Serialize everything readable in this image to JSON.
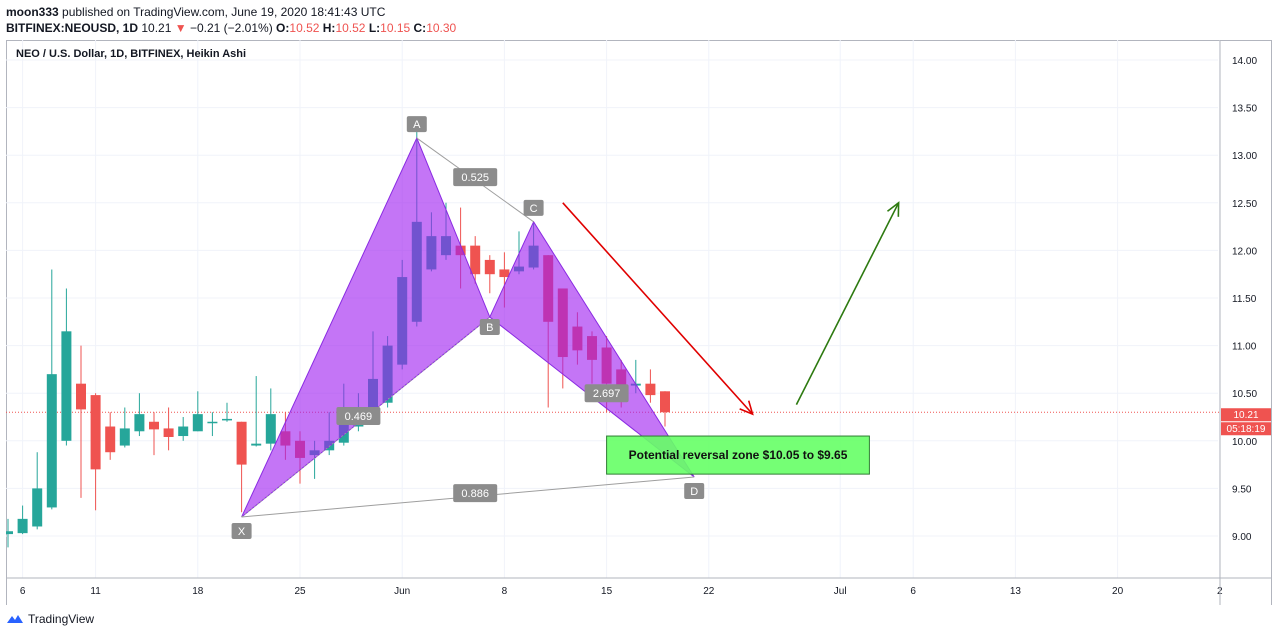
{
  "header": {
    "user": "moon333",
    "published": "published on TradingView.com, June 19, 2020 18:41:43 UTC",
    "symbol": "BITFINEX:NEOUSD, 1D",
    "last": "10.21",
    "change": "−0.21 (−2.01%)",
    "o_label": "O:",
    "o": "10.52",
    "h_label": "H:",
    "h": "10.52",
    "l_label": "L:",
    "l": "10.15",
    "c_label": "C:",
    "c": "10.30"
  },
  "legend_title": "NEO / U.S. Dollar, 1D, BITFINEX, Heikin Ashi",
  "footer": {
    "brand": "TradingView"
  },
  "colors": {
    "up": "#26a69a",
    "down": "#ef5350",
    "pattern": "#a020f0",
    "zone": "#66ff66",
    "red_arrow": "#e00000",
    "green_arrow": "#2d7a10"
  },
  "chart_data": {
    "type": "candlestick",
    "title": "NEO / U.S. Dollar, 1D, BITFINEX, Heikin Ashi",
    "ylim": [
      8.55,
      14.2
    ],
    "y_ticks": [
      "14.00",
      "13.50",
      "13.00",
      "12.50",
      "12.00",
      "11.50",
      "11.00",
      "10.50",
      "10.00",
      "9.50",
      "9.00"
    ],
    "x_ticks": [
      {
        "label": "6",
        "day": 6
      },
      {
        "label": "11",
        "day": 11
      },
      {
        "label": "18",
        "day": 18
      },
      {
        "label": "25",
        "day": 25
      },
      {
        "label": "Jun",
        "day": 32
      },
      {
        "label": "8",
        "day": 39
      },
      {
        "label": "15",
        "day": 46
      },
      {
        "label": "22",
        "day": 53
      },
      {
        "label": "Jul",
        "day": 62
      },
      {
        "label": "6",
        "day": 67
      },
      {
        "label": "13",
        "day": 74
      },
      {
        "label": "20",
        "day": 81
      },
      {
        "label": "2",
        "day": 88
      }
    ],
    "day_reference": "day 1 = May 1, 2020",
    "candles": [
      {
        "d": 5,
        "o": 9.02,
        "c": 9.05,
        "h": 9.18,
        "l": 8.88
      },
      {
        "d": 6,
        "o": 9.03,
        "c": 9.18,
        "h": 9.32,
        "l": 9.02
      },
      {
        "d": 7,
        "o": 9.1,
        "c": 9.5,
        "h": 9.88,
        "l": 9.07
      },
      {
        "d": 8,
        "o": 9.3,
        "c": 10.7,
        "h": 11.8,
        "l": 9.28
      },
      {
        "d": 9,
        "o": 10.0,
        "c": 11.15,
        "h": 11.6,
        "l": 9.95
      },
      {
        "d": 10,
        "o": 10.6,
        "c": 10.33,
        "h": 11.0,
        "l": 9.4
      },
      {
        "d": 11,
        "o": 10.48,
        "c": 9.7,
        "h": 10.5,
        "l": 9.27
      },
      {
        "d": 12,
        "o": 10.15,
        "c": 9.88,
        "h": 10.3,
        "l": 9.8
      },
      {
        "d": 13,
        "o": 9.95,
        "c": 10.13,
        "h": 10.35,
        "l": 9.93
      },
      {
        "d": 14,
        "o": 10.1,
        "c": 10.28,
        "h": 10.5,
        "l": 10.05
      },
      {
        "d": 15,
        "o": 10.2,
        "c": 10.12,
        "h": 10.3,
        "l": 9.85
      },
      {
        "d": 16,
        "o": 10.13,
        "c": 10.04,
        "h": 10.35,
        "l": 9.9
      },
      {
        "d": 17,
        "o": 10.05,
        "c": 10.15,
        "h": 10.25,
        "l": 10.0
      },
      {
        "d": 18,
        "o": 10.1,
        "c": 10.28,
        "h": 10.52,
        "l": 10.1
      },
      {
        "d": 19,
        "o": 10.2,
        "c": 10.2,
        "h": 10.3,
        "l": 10.05
      },
      {
        "d": 20,
        "o": 10.22,
        "c": 10.23,
        "h": 10.4,
        "l": 10.2
      },
      {
        "d": 21,
        "o": 10.2,
        "c": 9.75,
        "h": 10.2,
        "l": 9.25
      },
      {
        "d": 22,
        "o": 9.95,
        "c": 9.97,
        "h": 10.68,
        "l": 9.94
      },
      {
        "d": 23,
        "o": 9.97,
        "c": 10.28,
        "h": 10.55,
        "l": 9.9
      },
      {
        "d": 24,
        "o": 10.1,
        "c": 9.95,
        "h": 10.3,
        "l": 9.8
      },
      {
        "d": 25,
        "o": 10.0,
        "c": 9.82,
        "h": 10.1,
        "l": 9.55
      },
      {
        "d": 26,
        "o": 9.85,
        "c": 9.9,
        "h": 10.0,
        "l": 9.6
      },
      {
        "d": 27,
        "o": 9.9,
        "c": 10.0,
        "h": 10.3,
        "l": 9.85
      },
      {
        "d": 28,
        "o": 9.98,
        "c": 10.2,
        "h": 10.6,
        "l": 9.95
      },
      {
        "d": 29,
        "o": 10.15,
        "c": 10.22,
        "h": 10.5,
        "l": 10.1
      },
      {
        "d": 30,
        "o": 10.2,
        "c": 10.65,
        "h": 11.15,
        "l": 10.18
      },
      {
        "d": 31,
        "o": 10.4,
        "c": 11.0,
        "h": 11.1,
        "l": 10.35
      },
      {
        "d": 32,
        "o": 10.8,
        "c": 11.72,
        "h": 11.9,
        "l": 10.75
      },
      {
        "d": 33,
        "o": 11.25,
        "c": 12.3,
        "h": 13.25,
        "l": 11.2
      },
      {
        "d": 34,
        "o": 11.8,
        "c": 12.15,
        "h": 12.4,
        "l": 11.78
      },
      {
        "d": 35,
        "o": 11.95,
        "c": 12.15,
        "h": 12.5,
        "l": 11.9
      },
      {
        "d": 36,
        "o": 12.05,
        "c": 11.95,
        "h": 12.45,
        "l": 11.6
      },
      {
        "d": 37,
        "o": 12.05,
        "c": 11.75,
        "h": 12.15,
        "l": 11.65
      },
      {
        "d": 38,
        "o": 11.9,
        "c": 11.75,
        "h": 11.95,
        "l": 11.55
      },
      {
        "d": 39,
        "o": 11.8,
        "c": 11.72,
        "h": 11.98,
        "l": 11.4
      },
      {
        "d": 40,
        "o": 11.78,
        "c": 11.83,
        "h": 12.2,
        "l": 11.75
      },
      {
        "d": 41,
        "o": 11.82,
        "c": 12.05,
        "h": 12.3,
        "l": 11.8
      },
      {
        "d": 42,
        "o": 11.95,
        "c": 11.25,
        "h": 11.95,
        "l": 10.35
      },
      {
        "d": 43,
        "o": 11.6,
        "c": 10.88,
        "h": 11.6,
        "l": 10.55
      },
      {
        "d": 44,
        "o": 11.2,
        "c": 10.95,
        "h": 11.35,
        "l": 10.8
      },
      {
        "d": 45,
        "o": 11.1,
        "c": 10.85,
        "h": 11.15,
        "l": 10.6
      },
      {
        "d": 46,
        "o": 10.98,
        "c": 10.6,
        "h": 11.1,
        "l": 10.3
      },
      {
        "d": 47,
        "o": 10.75,
        "c": 10.55,
        "h": 10.85,
        "l": 10.35
      },
      {
        "d": 48,
        "o": 10.58,
        "c": 10.6,
        "h": 10.85,
        "l": 10.5
      },
      {
        "d": 49,
        "o": 10.6,
        "c": 10.48,
        "h": 10.75,
        "l": 10.4
      },
      {
        "d": 50,
        "o": 10.52,
        "c": 10.3,
        "h": 10.52,
        "l": 10.15
      }
    ],
    "current_price": 10.3,
    "price_label": "10.21",
    "countdown": "05:18:19",
    "harmonic_pattern": {
      "points": [
        {
          "label": "X",
          "day": 21,
          "price": 9.2
        },
        {
          "label": "A",
          "day": 33,
          "price": 13.18
        },
        {
          "label": "B",
          "day": 38,
          "price": 11.3
        },
        {
          "label": "C",
          "day": 41,
          "price": 12.3
        },
        {
          "label": "D",
          "day": 52,
          "price": 9.62
        }
      ],
      "ratios": [
        {
          "text": "0.525",
          "day": 37,
          "price": 12.77
        },
        {
          "text": "0.469",
          "day": 29,
          "price": 10.26
        },
        {
          "text": "2.697",
          "day": 46,
          "price": 10.5
        },
        {
          "text": "0.886",
          "day": 37,
          "price": 9.45
        }
      ]
    },
    "reversal_zone": {
      "label": "Potential reversal zone $10.05 to $9.65",
      "day_from": 46,
      "day_to": 64,
      "price_top": 10.05,
      "price_bottom": 9.65
    },
    "arrows": [
      {
        "color": "red",
        "from": {
          "day": 43,
          "price": 12.5
        },
        "to": {
          "day": 56,
          "price": 10.28
        }
      },
      {
        "color": "green",
        "from": {
          "day": 59,
          "price": 10.38
        },
        "to": {
          "day": 66,
          "price": 12.5
        }
      }
    ]
  }
}
